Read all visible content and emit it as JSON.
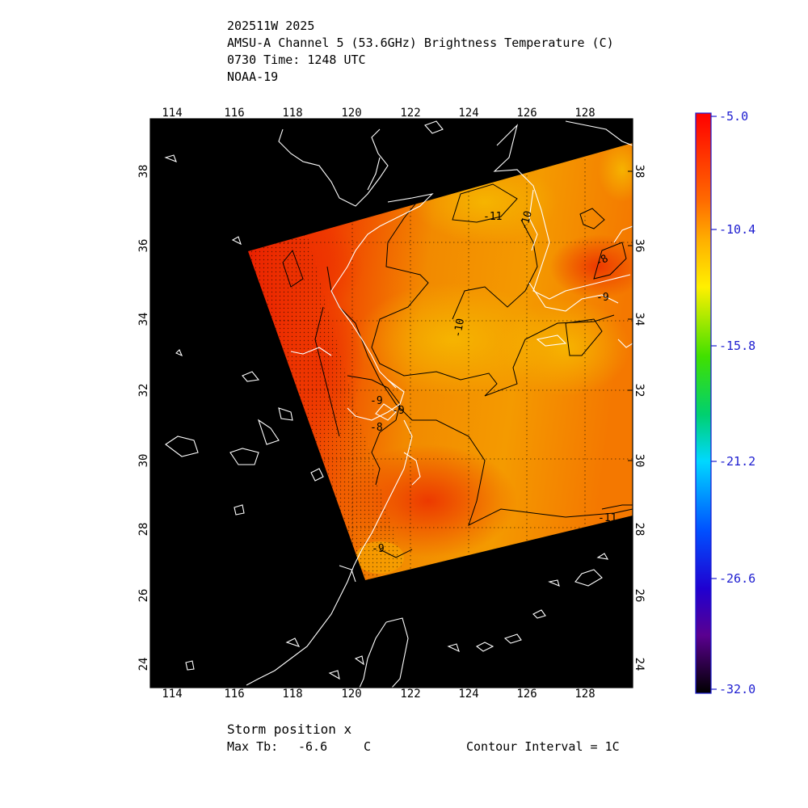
{
  "header": {
    "line1": "202511W 2025",
    "line2": "AMSU-A Channel 5 (53.6GHz) Brightness Temperature (C)",
    "line3": "0730 Time: 1248 UTC",
    "line4": "NOAA-19"
  },
  "map": {
    "lon_ticks": [
      "114",
      "116",
      "118",
      "120",
      "122",
      "124",
      "126",
      "128"
    ],
    "lat_ticks": [
      "38",
      "36",
      "34",
      "32",
      "30",
      "28",
      "26",
      "24"
    ],
    "contour_labels": [
      "-11",
      "-10",
      "-10",
      "-9",
      "-8",
      "-9",
      "-9",
      "-8",
      "-9",
      "-11"
    ]
  },
  "colorbar": {
    "labels": [
      "-5.0",
      "-10.4",
      "-15.8",
      "-21.2",
      "-26.6",
      "-32.0"
    ],
    "min": -32.0,
    "max": -5.0
  },
  "footer": {
    "storm_position": "Storm position x",
    "max_tb_label": "Max Tb:",
    "max_tb_value": "-6.6",
    "max_tb_unit": "C",
    "contour_interval": "Contour Interval = 1C"
  },
  "colors": {
    "background": "#000000",
    "coastline": "#ffffff",
    "colorbar_text": "#1c1cd0"
  }
}
